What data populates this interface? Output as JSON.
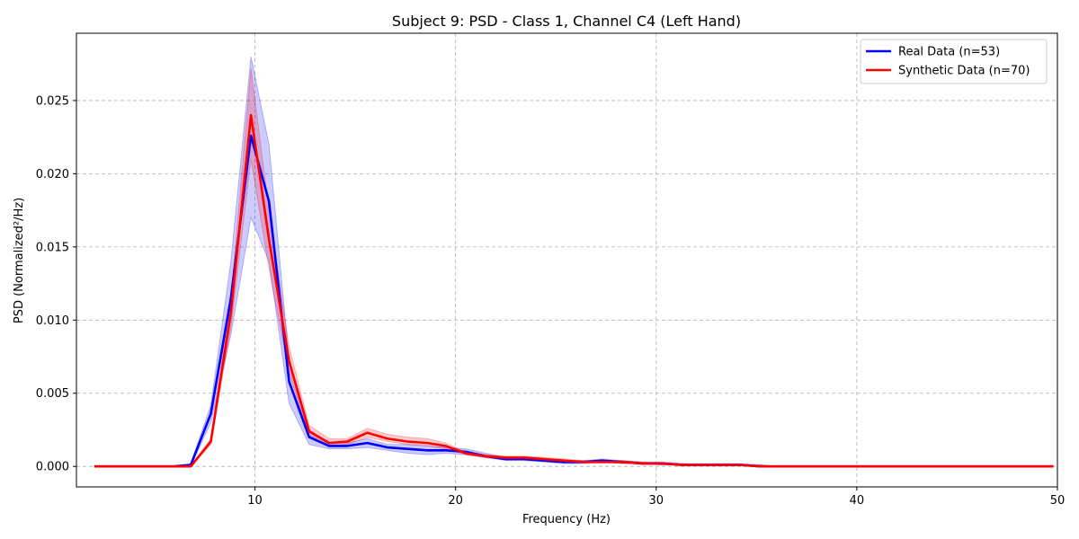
{
  "chart_data": {
    "type": "line",
    "title": "Subject 9: PSD - Class 1, Channel C4 (Left Hand)",
    "xlabel": "Frequency (Hz)",
    "ylabel": "PSD (Normalized²/Hz)",
    "xlim": [
      1.1,
      50
    ],
    "ylim": [
      -0.0014,
      0.0296
    ],
    "xticks": [
      10,
      20,
      30,
      40,
      50
    ],
    "yticks": [
      0.0,
      0.005,
      0.01,
      0.015,
      0.02,
      0.025
    ],
    "ytick_labels": [
      "0.000",
      "0.005",
      "0.010",
      "0.015",
      "0.020",
      "0.025"
    ],
    "grid": true,
    "legend_position": "top-right",
    "x": [
      2.0,
      2.9,
      3.9,
      4.9,
      5.9,
      6.8,
      7.8,
      8.8,
      9.8,
      10.7,
      11.7,
      12.7,
      13.7,
      14.6,
      15.6,
      16.6,
      17.6,
      18.6,
      19.5,
      20.5,
      21.5,
      22.5,
      23.4,
      24.4,
      25.4,
      26.4,
      27.3,
      28.3,
      29.3,
      30.3,
      31.3,
      32.2,
      33.2,
      34.2,
      35.2,
      36.1,
      37.1,
      38.1,
      39.1,
      40.0,
      41.0,
      42.0,
      43.0,
      44.0,
      44.9,
      45.9,
      46.9,
      47.9,
      48.8,
      49.8
    ],
    "series": [
      {
        "name": "Real Data (n=53)",
        "color": "#0000ff",
        "mean": [
          0.0,
          0.0,
          0.0,
          0.0,
          0.0,
          0.0001,
          0.0036,
          0.0115,
          0.0226,
          0.0181,
          0.0058,
          0.002,
          0.0014,
          0.0014,
          0.0016,
          0.0013,
          0.0012,
          0.0011,
          0.0011,
          0.001,
          0.0007,
          0.0005,
          0.0005,
          0.0004,
          0.0003,
          0.0003,
          0.0004,
          0.0003,
          0.0002,
          0.0002,
          0.0001,
          0.0001,
          0.0001,
          0.0001,
          0.0,
          0.0,
          0.0,
          0.0,
          0.0,
          0.0,
          0.0,
          0.0,
          0.0,
          0.0,
          0.0,
          0.0,
          0.0,
          0.0,
          0.0,
          0.0
        ],
        "lower": [
          0.0,
          0.0,
          0.0,
          0.0,
          0.0,
          0.0,
          0.003,
          0.009,
          0.017,
          0.014,
          0.0043,
          0.0015,
          0.0012,
          0.0012,
          0.0013,
          0.0011,
          0.0009,
          0.0008,
          0.0009,
          0.0008,
          0.0006,
          0.0004,
          0.0004,
          0.0003,
          0.0002,
          0.0002,
          0.0003,
          0.0002,
          0.0002,
          0.0001,
          0.0001,
          0.0001,
          0.0001,
          0.0001,
          0.0,
          0.0,
          0.0,
          0.0,
          0.0,
          0.0,
          0.0,
          0.0,
          0.0,
          0.0,
          0.0,
          0.0,
          0.0,
          0.0,
          0.0,
          0.0
        ],
        "upper": [
          0.0,
          0.0,
          0.0,
          0.0,
          0.0,
          0.0002,
          0.0042,
          0.014,
          0.028,
          0.022,
          0.0073,
          0.0025,
          0.0016,
          0.0016,
          0.0019,
          0.0015,
          0.0015,
          0.0014,
          0.0013,
          0.0012,
          0.0009,
          0.0006,
          0.0006,
          0.0005,
          0.0004,
          0.0004,
          0.0005,
          0.0004,
          0.0003,
          0.0003,
          0.0002,
          0.0002,
          0.0002,
          0.0002,
          0.0001,
          0.0,
          0.0,
          0.0,
          0.0,
          0.0,
          0.0,
          0.0,
          0.0,
          0.0,
          0.0,
          0.0,
          0.0,
          0.0,
          0.0,
          0.0
        ]
      },
      {
        "name": "Synthetic Data (n=70)",
        "color": "#ff0000",
        "mean": [
          0.0,
          0.0,
          0.0,
          0.0,
          0.0,
          0.0,
          0.0017,
          0.0105,
          0.024,
          0.0155,
          0.0072,
          0.0024,
          0.0016,
          0.0017,
          0.0023,
          0.0019,
          0.0017,
          0.0016,
          0.0014,
          0.0009,
          0.0007,
          0.0006,
          0.0006,
          0.0005,
          0.0004,
          0.0003,
          0.0003,
          0.0003,
          0.0002,
          0.0002,
          0.0001,
          0.0001,
          0.0001,
          0.0001,
          0.0,
          0.0,
          0.0,
          0.0,
          0.0,
          0.0,
          0.0,
          0.0,
          0.0,
          0.0,
          0.0,
          0.0,
          0.0,
          0.0,
          0.0,
          0.0
        ],
        "lower": [
          0.0,
          0.0,
          0.0,
          0.0,
          0.0,
          0.0,
          0.0015,
          0.0095,
          0.021,
          0.0135,
          0.0064,
          0.0021,
          0.0014,
          0.0015,
          0.002,
          0.0017,
          0.0015,
          0.0014,
          0.0012,
          0.0008,
          0.0006,
          0.0005,
          0.0005,
          0.0004,
          0.0003,
          0.0003,
          0.0003,
          0.0002,
          0.0002,
          0.0001,
          0.0001,
          0.0001,
          0.0001,
          0.0001,
          0.0,
          0.0,
          0.0,
          0.0,
          0.0,
          0.0,
          0.0,
          0.0,
          0.0,
          0.0,
          0.0,
          0.0,
          0.0,
          0.0,
          0.0,
          0.0
        ],
        "upper": [
          0.0,
          0.0,
          0.0,
          0.0,
          0.0,
          0.0,
          0.0019,
          0.0115,
          0.0272,
          0.0175,
          0.0082,
          0.0028,
          0.0019,
          0.0019,
          0.0026,
          0.0022,
          0.002,
          0.0019,
          0.0016,
          0.001,
          0.0008,
          0.0007,
          0.0007,
          0.0006,
          0.0005,
          0.0004,
          0.0004,
          0.0004,
          0.0003,
          0.0002,
          0.0002,
          0.0001,
          0.0001,
          0.0001,
          0.0001,
          0.0,
          0.0,
          0.0,
          0.0,
          0.0,
          0.0,
          0.0,
          0.0,
          0.0,
          0.0,
          0.0,
          0.0,
          0.0,
          0.0,
          0.0
        ]
      }
    ]
  }
}
